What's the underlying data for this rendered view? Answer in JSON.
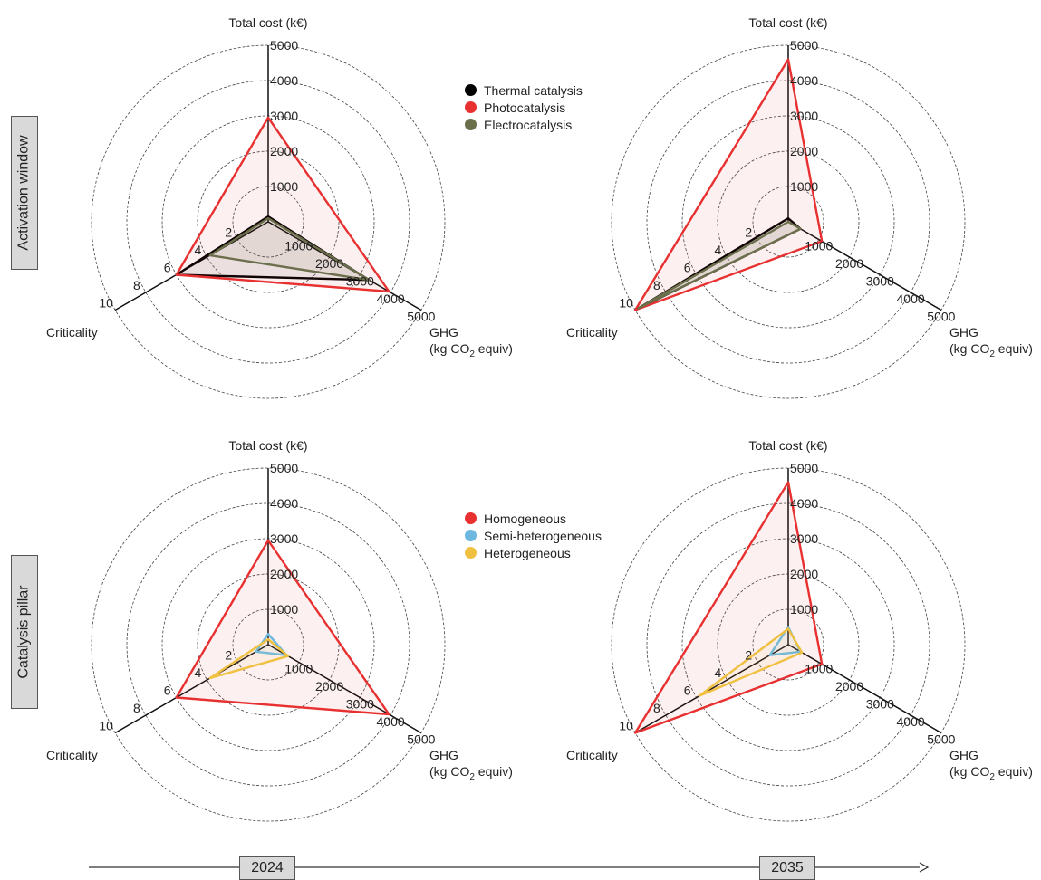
{
  "row_labels": [
    "Activation window",
    "Catalysis pillar"
  ],
  "legends": [
    [
      {
        "name": "Thermal catalysis",
        "color": "#000000"
      },
      {
        "name": "Photocatalysis",
        "color": "#e83030"
      },
      {
        "name": "Electrocatalysis",
        "color": "#6b6f4b"
      }
    ],
    [
      {
        "name": "Homogeneous",
        "color": "#e83030"
      },
      {
        "name": "Semi-heterogeneous",
        "color": "#6cb8e0"
      },
      {
        "name": "Heterogeneous",
        "color": "#f0c040"
      }
    ]
  ],
  "timeline": {
    "years": [
      "2024",
      "2035"
    ]
  },
  "chart_data": [
    {
      "type": "radar",
      "year": "2024",
      "row": "Activation window",
      "axes": [
        {
          "label": "Total cost (k€)",
          "max": 5000,
          "ticks": [
            1000,
            2000,
            3000,
            4000,
            5000
          ]
        },
        {
          "label": "GHG",
          "label2": "(kg CO",
          "sub": "2",
          "label3": " equiv)",
          "max": 5000,
          "ticks": [
            1000,
            2000,
            3000,
            4000,
            5000
          ]
        },
        {
          "label": "Criticality",
          "max": 10,
          "ticks": [
            2,
            4,
            6,
            8,
            10
          ]
        }
      ],
      "series": [
        {
          "name": "Thermal catalysis",
          "values": [
            150,
            3300,
            6
          ]
        },
        {
          "name": "Photocatalysis",
          "values": [
            2950,
            3950,
            6
          ]
        },
        {
          "name": "Electrocatalysis",
          "values": [
            100,
            3300,
            3.8
          ]
        }
      ]
    },
    {
      "type": "radar",
      "year": "2035",
      "row": "Activation window",
      "axes": [
        {
          "label": "Total cost (k€)",
          "max": 5000,
          "ticks": [
            1000,
            2000,
            3000,
            4000,
            5000
          ]
        },
        {
          "label": "GHG",
          "label2": "(kg CO",
          "sub": "2",
          "label3": " equiv)",
          "max": 5000,
          "ticks": [
            1000,
            2000,
            3000,
            4000,
            5000
          ]
        },
        {
          "label": "Criticality",
          "max": 10,
          "ticks": [
            2,
            4,
            6,
            8,
            10
          ]
        }
      ],
      "series": [
        {
          "name": "Thermal catalysis",
          "values": [
            100,
            400,
            10
          ]
        },
        {
          "name": "Photocatalysis",
          "values": [
            4600,
            1100,
            10
          ]
        },
        {
          "name": "Electrocatalysis",
          "values": [
            0,
            400,
            9.8
          ]
        }
      ]
    },
    {
      "type": "radar",
      "year": "2024",
      "row": "Catalysis pillar",
      "axes": [
        {
          "label": "Total cost (k€)",
          "max": 5000,
          "ticks": [
            1000,
            2000,
            3000,
            4000,
            5000
          ]
        },
        {
          "label": "GHG",
          "label2": "(kg CO",
          "sub": "2",
          "label3": " equiv)",
          "max": 5000,
          "ticks": [
            1000,
            2000,
            3000,
            4000,
            5000
          ]
        },
        {
          "label": "Criticality",
          "max": 10,
          "ticks": [
            2,
            4,
            6,
            8,
            10
          ]
        }
      ],
      "series": [
        {
          "name": "Homogeneous",
          "values": [
            2950,
            3950,
            6
          ]
        },
        {
          "name": "Semi-heterogeneous",
          "values": [
            300,
            600,
            0.8
          ]
        },
        {
          "name": "Heterogeneous",
          "values": [
            150,
            650,
            3.8
          ]
        }
      ]
    },
    {
      "type": "radar",
      "year": "2035",
      "row": "Catalysis pillar",
      "axes": [
        {
          "label": "Total cost (k€)",
          "max": 5000,
          "ticks": [
            1000,
            2000,
            3000,
            4000,
            5000
          ]
        },
        {
          "label": "GHG",
          "label2": "(kg CO",
          "sub": "2",
          "label3": " equiv)",
          "max": 5000,
          "ticks": [
            1000,
            2000,
            3000,
            4000,
            5000
          ]
        },
        {
          "label": "Criticality",
          "max": 10,
          "ticks": [
            2,
            4,
            6,
            8,
            10
          ]
        }
      ],
      "series": [
        {
          "name": "Homogeneous",
          "values": [
            4600,
            1100,
            10
          ]
        },
        {
          "name": "Semi-heterogeneous",
          "values": [
            500,
            400,
            1.2
          ]
        },
        {
          "name": "Heterogeneous",
          "values": [
            450,
            450,
            5.8
          ]
        }
      ]
    }
  ]
}
